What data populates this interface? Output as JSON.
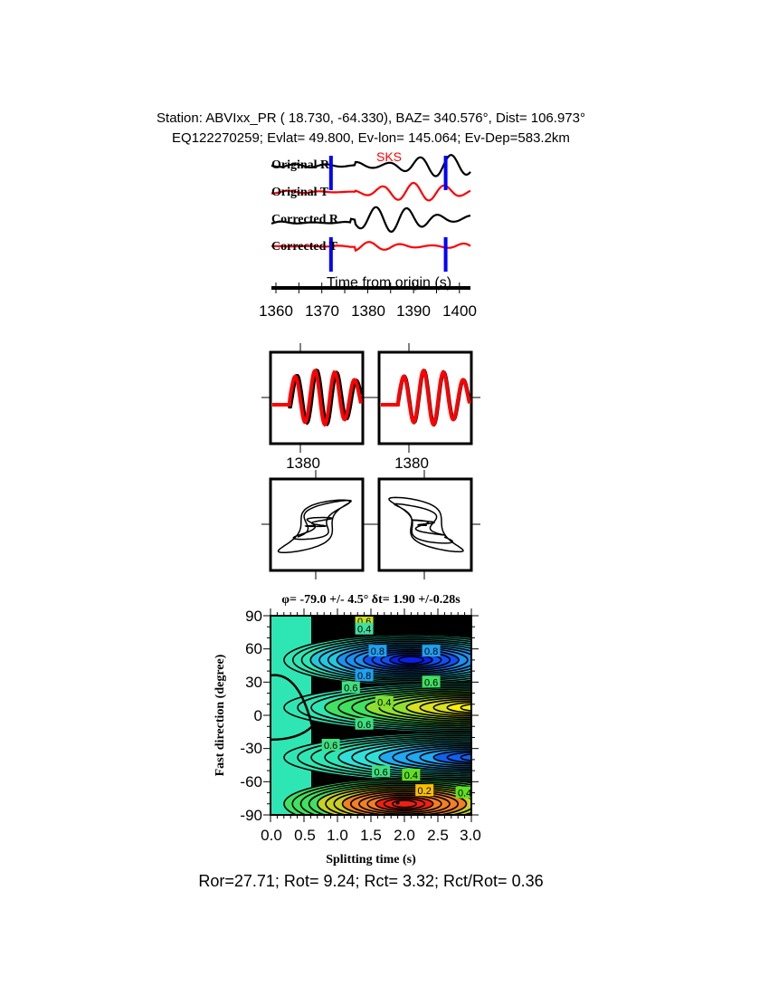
{
  "header": {
    "line1": "Station: ABVIxx_PR (  18.730,  -64.330), BAZ=  340.576°, Dist=  106.973°",
    "line2": "EQ122270259; Evlat=  49.800, Ev-lon= 145.064; Ev-Dep=583.2km"
  },
  "chart_data": [
    {
      "type": "line",
      "title": "",
      "phase_label": "SKS",
      "trace_labels": [
        "Original R",
        "Original T",
        "Corrected R",
        "Corrected T"
      ],
      "trace_colors": [
        "#000000",
        "#ff0000",
        "#000000",
        "#ff0000"
      ],
      "window_color": "#0000ff",
      "window_start": 1372,
      "window_end": 1397,
      "xlabel": "Time from origin (s)",
      "xticks": [
        "1360",
        "1370",
        "1380",
        "1390",
        "1400"
      ],
      "xlim": [
        1359,
        1402
      ]
    },
    {
      "type": "line",
      "panels": [
        "original-waveforms",
        "corrected-waveforms",
        "original-particle-motion",
        "corrected-particle-motion"
      ],
      "tick_labels": [
        "1380",
        "1380"
      ]
    },
    {
      "type": "heatmap",
      "title": "φ= -79.0 +/- 4.5° δt= 1.90 +/-0.28s",
      "phi": -79.0,
      "phi_err": 4.5,
      "dt": 1.9,
      "dt_err": 0.28,
      "xlabel": "Splitting time (s)",
      "ylabel": "Fast direction (degree)",
      "xlim": [
        0,
        3
      ],
      "ylim": [
        -90,
        90
      ],
      "xticks": [
        "0.0",
        "0.5",
        "1.0",
        "1.5",
        "2.0",
        "2.5",
        "3.0"
      ],
      "yticks": [
        "90",
        "60",
        "30",
        "0",
        "-30",
        "-60",
        "-90"
      ],
      "contour_labels": [
        "0.6",
        "0.4",
        "0.8",
        "0.8",
        "0.8",
        "0.6",
        "0.6",
        "0.4",
        "0.6",
        "0.6",
        "0.6",
        "0.4",
        "0.2",
        "0.4"
      ]
    }
  ],
  "footer": "Ror=27.71; Rot= 9.24; Rct= 3.32; Rct/Rot= 0.36"
}
